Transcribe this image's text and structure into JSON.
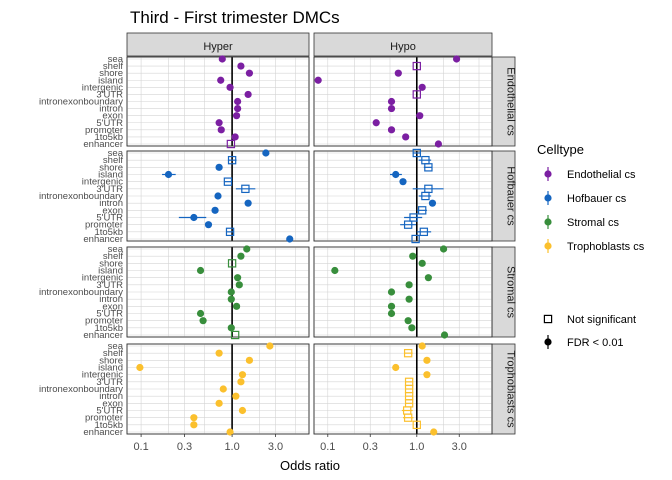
{
  "chart_data": {
    "type": "scatter",
    "title": "Third - First trimester DMCs",
    "xlabel": "Odds ratio",
    "ylabel": "",
    "x_scale": "log",
    "xlim": [
      0.07,
      7
    ],
    "x_ticks": [
      0.1,
      0.3,
      1.0,
      3.0
    ],
    "x_tick_labels": [
      "0.1",
      "0.3",
      "1.0",
      "3.0"
    ],
    "reference_line": 1.0,
    "columns": [
      "Hyper",
      "Hypo"
    ],
    "rows": [
      "Endothelial cs",
      "Hofbauer cs",
      "Stromal cs",
      "Trophoblasts cs"
    ],
    "categories": [
      "sea",
      "shelf",
      "shore",
      "island",
      "intergenic",
      "3'UTR",
      "intronexonboundary",
      "intron",
      "exon",
      "5'UTR",
      "promoter",
      "1to5kb",
      "enhancer"
    ],
    "legend": {
      "celltype_title": "Celltype",
      "celltypes": [
        {
          "name": "Endothelial cs",
          "color": "#7b1fa2"
        },
        {
          "name": "Hofbauer cs",
          "color": "#1565c0"
        },
        {
          "name": "Stromal cs",
          "color": "#388e3c"
        },
        {
          "name": "Trophoblasts cs",
          "color": "#fbc02d"
        }
      ],
      "significance": [
        {
          "name": "Not significant",
          "shape": "open-square"
        },
        {
          "name": "FDR < 0.01",
          "shape": "filled-circle"
        }
      ]
    },
    "panels": [
      {
        "row": "Endothelial cs",
        "col": "Hyper",
        "points": [
          {
            "category": "sea",
            "or": 0.78,
            "sig": true
          },
          {
            "category": "shelf",
            "or": 1.25,
            "sig": true
          },
          {
            "category": "shore",
            "or": 1.55,
            "sig": true
          },
          {
            "category": "island",
            "or": 0.75,
            "sig": true
          },
          {
            "category": "intergenic",
            "or": 0.95,
            "sig": true
          },
          {
            "category": "3'UTR",
            "or": 1.5,
            "sig": true
          },
          {
            "category": "intronexonboundary",
            "or": 1.15,
            "sig": true
          },
          {
            "category": "intron",
            "or": 1.15,
            "sig": true
          },
          {
            "category": "exon",
            "or": 1.12,
            "sig": true
          },
          {
            "category": "5'UTR",
            "or": 0.72,
            "sig": true
          },
          {
            "category": "promoter",
            "or": 0.76,
            "sig": true
          },
          {
            "category": "1to5kb",
            "or": 1.08,
            "sig": true
          },
          {
            "category": "enhancer",
            "or": 0.97,
            "sig": false
          }
        ]
      },
      {
        "row": "Endothelial cs",
        "col": "Hypo",
        "points": [
          {
            "category": "sea",
            "or": 2.8,
            "sig": true
          },
          {
            "category": "shelf",
            "or": 1.0,
            "sig": false
          },
          {
            "category": "shore",
            "or": 0.62,
            "sig": true
          },
          {
            "category": "island",
            "or": 0.078,
            "sig": true
          },
          {
            "category": "intergenic",
            "or": 1.15,
            "sig": true
          },
          {
            "category": "3'UTR",
            "or": 1.0,
            "sig": false
          },
          {
            "category": "intronexonboundary",
            "or": 0.52,
            "sig": true
          },
          {
            "category": "intron",
            "or": 0.52,
            "sig": true
          },
          {
            "category": "exon",
            "or": 1.08,
            "sig": true
          },
          {
            "category": "5'UTR",
            "or": 0.35,
            "sig": true
          },
          {
            "category": "promoter",
            "or": 0.52,
            "sig": true
          },
          {
            "category": "1to5kb",
            "or": 0.75,
            "sig": true
          },
          {
            "category": "enhancer",
            "or": 1.75,
            "sig": true
          }
        ]
      },
      {
        "row": "Hofbauer cs",
        "col": "Hyper",
        "points": [
          {
            "category": "sea",
            "or": 2.35,
            "sig": true
          },
          {
            "category": "shelf",
            "or": 1.0,
            "sig": false,
            "lo": 0.9,
            "hi": 1.12
          },
          {
            "category": "shore",
            "or": 0.72,
            "sig": true
          },
          {
            "category": "island",
            "or": 0.2,
            "sig": true,
            "lo": 0.17,
            "hi": 0.24
          },
          {
            "category": "intergenic",
            "or": 0.9,
            "sig": false,
            "lo": 0.82,
            "hi": 0.98
          },
          {
            "category": "3'UTR",
            "or": 1.4,
            "sig": false,
            "lo": 1.1,
            "hi": 1.8
          },
          {
            "category": "intronexonboundary",
            "or": 0.7,
            "sig": true
          },
          {
            "category": "intron",
            "or": 1.5,
            "sig": true
          },
          {
            "category": "exon",
            "or": 0.65,
            "sig": true
          },
          {
            "category": "5'UTR",
            "or": 0.38,
            "sig": true,
            "lo": 0.26,
            "hi": 0.52
          },
          {
            "category": "promoter",
            "or": 0.55,
            "sig": true
          },
          {
            "category": "1to5kb",
            "or": 0.95,
            "sig": false,
            "lo": 0.88,
            "hi": 1.03
          },
          {
            "category": "enhancer",
            "or": 4.3,
            "sig": true
          }
        ]
      },
      {
        "row": "Hofbauer cs",
        "col": "Hypo",
        "points": [
          {
            "category": "sea",
            "or": 1.0,
            "sig": false,
            "lo": 0.9,
            "hi": 1.1
          },
          {
            "category": "shelf",
            "or": 1.25,
            "sig": false,
            "lo": 1.05,
            "hi": 1.45
          },
          {
            "category": "shore",
            "or": 1.35,
            "sig": false,
            "lo": 1.2,
            "hi": 1.5
          },
          {
            "category": "island",
            "or": 0.58,
            "sig": true,
            "lo": 0.5,
            "hi": 0.68
          },
          {
            "category": "intergenic",
            "or": 0.7,
            "sig": true
          },
          {
            "category": "3'UTR",
            "or": 1.35,
            "sig": false,
            "lo": 0.9,
            "hi": 2.0
          },
          {
            "category": "intronexonboundary",
            "or": 1.25,
            "sig": false,
            "lo": 1.05,
            "hi": 1.45
          },
          {
            "category": "intron",
            "or": 1.5,
            "sig": true
          },
          {
            "category": "exon",
            "or": 1.15,
            "sig": false,
            "lo": 1.0,
            "hi": 1.3
          },
          {
            "category": "5'UTR",
            "or": 0.92,
            "sig": false,
            "lo": 0.72,
            "hi": 1.15
          },
          {
            "category": "promoter",
            "or": 0.8,
            "sig": false,
            "lo": 0.65,
            "hi": 0.98
          },
          {
            "category": "1to5kb",
            "or": 1.2,
            "sig": false,
            "lo": 1.0,
            "hi": 1.45
          },
          {
            "category": "enhancer",
            "or": 0.97,
            "sig": false
          }
        ]
      },
      {
        "row": "Stromal cs",
        "col": "Hyper",
        "points": [
          {
            "category": "sea",
            "or": 1.45,
            "sig": true
          },
          {
            "category": "shelf",
            "or": 1.25,
            "sig": true
          },
          {
            "category": "shore",
            "or": 1.0,
            "sig": false
          },
          {
            "category": "island",
            "or": 0.45,
            "sig": true
          },
          {
            "category": "intergenic",
            "or": 1.15,
            "sig": true
          },
          {
            "category": "3'UTR",
            "or": 1.2,
            "sig": true
          },
          {
            "category": "intronexonboundary",
            "or": 0.98,
            "sig": true
          },
          {
            "category": "intron",
            "or": 0.98,
            "sig": true
          },
          {
            "category": "exon",
            "or": 1.12,
            "sig": true
          },
          {
            "category": "5'UTR",
            "or": 0.45,
            "sig": true
          },
          {
            "category": "promoter",
            "or": 0.48,
            "sig": true
          },
          {
            "category": "1to5kb",
            "or": 0.98,
            "sig": true
          },
          {
            "category": "enhancer",
            "or": 1.08,
            "sig": false
          }
        ]
      },
      {
        "row": "Stromal cs",
        "col": "Hypo",
        "points": [
          {
            "category": "sea",
            "or": 2.0,
            "sig": true
          },
          {
            "category": "shelf",
            "or": 0.9,
            "sig": true
          },
          {
            "category": "shore",
            "or": 1.15,
            "sig": true
          },
          {
            "category": "island",
            "or": 0.12,
            "sig": true
          },
          {
            "category": "intergenic",
            "or": 1.35,
            "sig": true
          },
          {
            "category": "3'UTR",
            "or": 0.82,
            "sig": true
          },
          {
            "category": "intronexonboundary",
            "or": 0.52,
            "sig": true
          },
          {
            "category": "intron",
            "or": 0.82,
            "sig": true
          },
          {
            "category": "exon",
            "or": 0.52,
            "sig": true
          },
          {
            "category": "5'UTR",
            "or": 0.52,
            "sig": true
          },
          {
            "category": "promoter",
            "or": 0.8,
            "sig": true
          },
          {
            "category": "1to5kb",
            "or": 0.88,
            "sig": true
          },
          {
            "category": "enhancer",
            "or": 2.05,
            "sig": true
          }
        ]
      },
      {
        "row": "Trophoblasts cs",
        "col": "Hyper",
        "points": [
          {
            "category": "sea",
            "or": 2.6,
            "sig": true
          },
          {
            "category": "shelf",
            "or": 0.72,
            "sig": true
          },
          {
            "category": "shore",
            "or": 1.55,
            "sig": true
          },
          {
            "category": "island",
            "or": 0.097,
            "sig": true
          },
          {
            "category": "intergenic",
            "or": 1.3,
            "sig": true
          },
          {
            "category": "3'UTR",
            "or": 1.25,
            "sig": true
          },
          {
            "category": "intronexonboundary",
            "or": 0.8,
            "sig": true
          },
          {
            "category": "intron",
            "or": 1.1,
            "sig": true
          },
          {
            "category": "exon",
            "or": 0.72,
            "sig": true
          },
          {
            "category": "5'UTR",
            "or": 1.3,
            "sig": true
          },
          {
            "category": "promoter",
            "or": 0.38,
            "sig": true
          },
          {
            "category": "1to5kb",
            "or": 0.38,
            "sig": true
          },
          {
            "category": "enhancer",
            "or": 0.95,
            "sig": true
          }
        ]
      },
      {
        "row": "Trophoblasts cs",
        "col": "Hypo",
        "points": [
          {
            "category": "sea",
            "or": 1.15,
            "sig": true
          },
          {
            "category": "shelf",
            "or": 0.8,
            "sig": false,
            "lo": 0.72,
            "hi": 0.9
          },
          {
            "category": "shore",
            "or": 1.3,
            "sig": true
          },
          {
            "category": "island",
            "or": 0.58,
            "sig": true
          },
          {
            "category": "intergenic",
            "or": 1.3,
            "sig": true
          },
          {
            "category": "3'UTR",
            "or": 0.82,
            "sig": false,
            "lo": 0.75,
            "hi": 0.9
          },
          {
            "category": "intronexonboundary",
            "or": 0.82,
            "sig": false,
            "lo": 0.75,
            "hi": 0.9
          },
          {
            "category": "intron",
            "or": 0.82,
            "sig": false,
            "lo": 0.75,
            "hi": 0.9
          },
          {
            "category": "exon",
            "or": 0.82,
            "sig": false,
            "lo": 0.75,
            "hi": 0.9
          },
          {
            "category": "5'UTR",
            "or": 0.78,
            "sig": false,
            "lo": 0.68,
            "hi": 0.9
          },
          {
            "category": "promoter",
            "or": 0.8,
            "sig": false,
            "lo": 0.7,
            "hi": 0.92
          },
          {
            "category": "1to5kb",
            "or": 1.0,
            "sig": false
          },
          {
            "category": "enhancer",
            "or": 1.55,
            "sig": true
          }
        ]
      }
    ]
  }
}
